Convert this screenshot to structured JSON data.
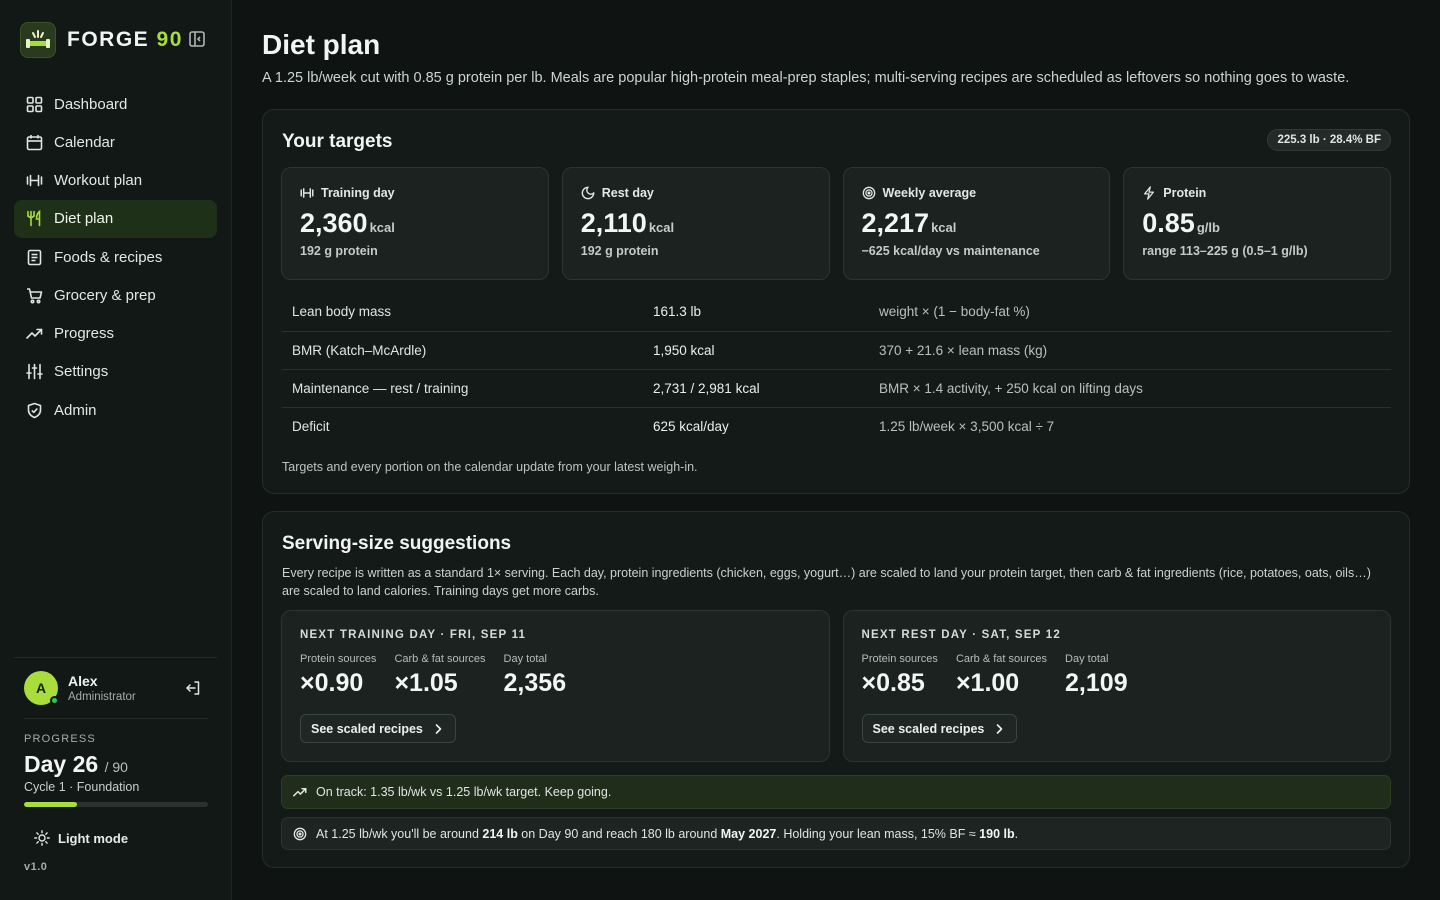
{
  "brand": {
    "name_main": "FORGE",
    "name_accent": "90"
  },
  "sidebar": {
    "items": [
      {
        "label": "Dashboard",
        "icon": "grid-icon"
      },
      {
        "label": "Calendar",
        "icon": "calendar-icon"
      },
      {
        "label": "Workout plan",
        "icon": "dumbbell-icon"
      },
      {
        "label": "Diet plan",
        "icon": "utensils-icon",
        "active": true
      },
      {
        "label": "Foods & recipes",
        "icon": "book-icon"
      },
      {
        "label": "Grocery & prep",
        "icon": "cart-icon"
      },
      {
        "label": "Progress",
        "icon": "trend-icon"
      },
      {
        "label": "Settings",
        "icon": "sliders-icon"
      },
      {
        "label": "Admin",
        "icon": "shield-icon"
      }
    ],
    "user": {
      "initial": "A",
      "name": "Alex",
      "role": "Administrator"
    },
    "progress": {
      "label": "PROGRESS",
      "day": "Day 26",
      "of": "/ 90",
      "cycle": "Cycle 1 · Foundation",
      "fraction": 0.289
    },
    "light_mode": "Light mode",
    "version": "v1.0"
  },
  "page": {
    "title": "Diet plan",
    "description": "A 1.25 lb/week cut with 0.85 g protein per lb. Meals are popular high-protein meal-prep staples; multi-serving recipes are scheduled as leftovers so nothing goes to waste."
  },
  "targets": {
    "title": "Your targets",
    "badge": "225.3 lb · 28.4% BF",
    "cards": [
      {
        "label": "Training day",
        "icon": "dumbbell-icon",
        "value": "2,360",
        "unit": "kcal",
        "sub": "192 g protein"
      },
      {
        "label": "Rest day",
        "icon": "moon-icon",
        "value": "2,110",
        "unit": "kcal",
        "sub": "192 g protein"
      },
      {
        "label": "Weekly average",
        "icon": "target-icon",
        "value": "2,217",
        "unit": "kcal",
        "sub": "−625 kcal/day vs maintenance"
      },
      {
        "label": "Protein",
        "icon": "bolt-icon",
        "value": "0.85",
        "unit": "g/lb",
        "sub": "range 113–225 g (0.5–1 g/lb)"
      }
    ],
    "rows": [
      {
        "name": "Lean body mass",
        "value": "161.3 lb",
        "formula": "weight × (1 − body-fat %)"
      },
      {
        "name": "BMR (Katch–McArdle)",
        "value": "1,950 kcal",
        "formula": "370 + 21.6 × lean mass (kg)"
      },
      {
        "name": "Maintenance — rest / training",
        "value": "2,731 / 2,981 kcal",
        "formula": "BMR × 1.4 activity, + 250 kcal on lifting days"
      },
      {
        "name": "Deficit",
        "value": "625 kcal/day",
        "formula": "1.25 lb/week × 3,500 kcal ÷ 7"
      }
    ],
    "note": "Targets and every portion on the calendar update from your latest weigh-in."
  },
  "serving": {
    "title": "Serving-size suggestions",
    "description": "Every recipe is written as a standard 1× serving. Each day, protein ingredients (chicken, eggs, yogurt…) are scaled to land your protein target, then carb & fat ingredients (rice, potatoes, oats, oils…) are scaled to land calories. Training days get more carbs.",
    "days": [
      {
        "label": "NEXT TRAINING DAY · FRI, SEP 11",
        "cols": [
          {
            "label": "Protein sources",
            "value": "×0.90"
          },
          {
            "label": "Carb & fat sources",
            "value": "×1.05"
          },
          {
            "label": "Day total",
            "value": "2,356"
          }
        ],
        "button": "See scaled recipes"
      },
      {
        "label": "NEXT REST DAY · SAT, SEP 12",
        "cols": [
          {
            "label": "Protein sources",
            "value": "×0.85"
          },
          {
            "label": "Carb & fat sources",
            "value": "×1.00"
          },
          {
            "label": "Day total",
            "value": "2,109"
          }
        ],
        "button": "See scaled recipes"
      }
    ],
    "on_track": "On track: 1.35 lb/wk vs 1.25 lb/wk target. Keep going.",
    "projection": {
      "p1": "At 1.25 lb/wk you'll be around ",
      "b1": "214 lb",
      "p2": " on Day 90 and reach 180 lb around ",
      "b2": "May 2027",
      "p3": ". Holding your lean mass, 15% BF ≈ ",
      "b3": "190 lb",
      "p4": "."
    }
  },
  "colors": {
    "accent": "#a9dd3c",
    "background": "#0f1413",
    "panel": "#141a18",
    "active_nav": "#1f3019"
  }
}
